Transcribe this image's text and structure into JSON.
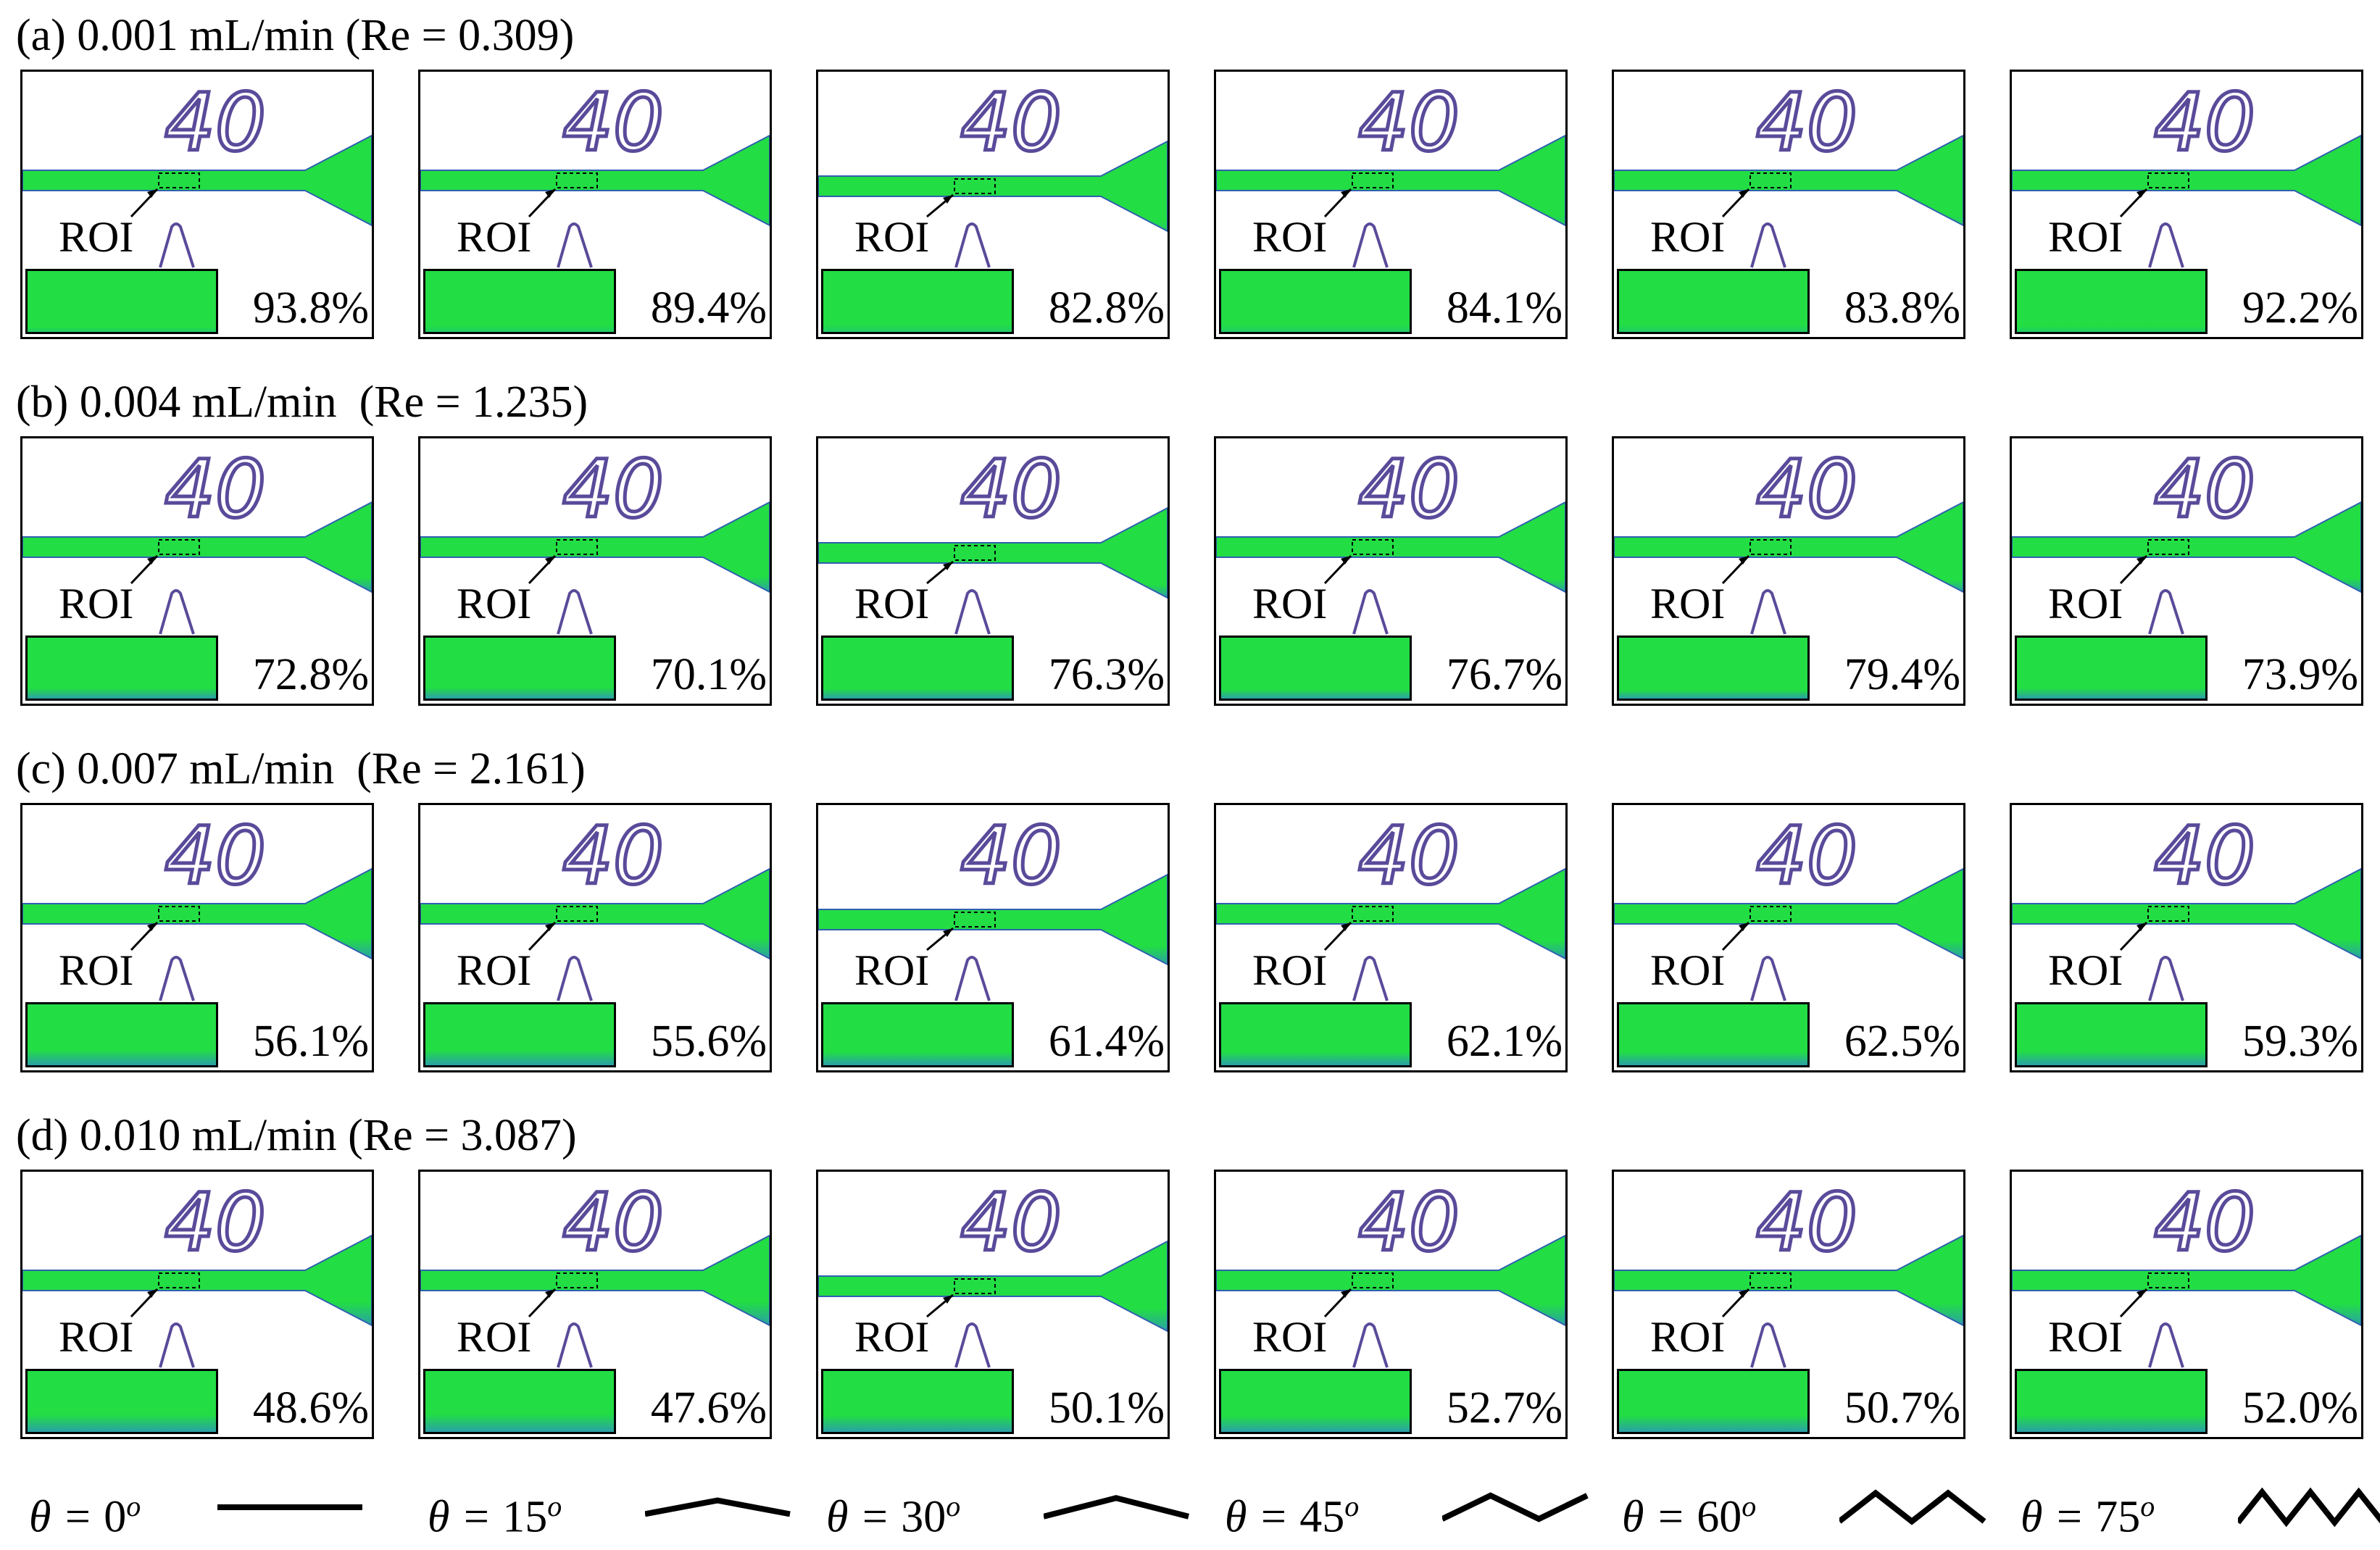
{
  "rows": [
    {
      "title": "(a) 0.001 mL/min (Re = 0.309)",
      "values": [
        "93.8%",
        "89.4%",
        "82.8%",
        "84.1%",
        "83.8%",
        "92.2%"
      ],
      "mixing": [
        93.8,
        89.4,
        82.8,
        84.1,
        83.8,
        92.2
      ]
    },
    {
      "title": "(b) 0.004 mL/min  (Re = 1.235)",
      "values": [
        "72.8%",
        "70.1%",
        "76.3%",
        "76.7%",
        "79.4%",
        "73.9%"
      ],
      "mixing": [
        72.8,
        70.1,
        76.3,
        76.7,
        79.4,
        73.9
      ]
    },
    {
      "title": "(c) 0.007 mL/min  (Re = 2.161)",
      "values": [
        "56.1%",
        "55.6%",
        "61.4%",
        "62.1%",
        "62.5%",
        "59.3%"
      ],
      "mixing": [
        56.1,
        55.6,
        61.4,
        62.1,
        62.5,
        59.3
      ]
    },
    {
      "title": "(d) 0.010 mL/min (Re = 3.087)",
      "values": [
        "48.6%",
        "47.6%",
        "50.1%",
        "52.7%",
        "50.7%",
        "52.0%"
      ],
      "mixing": [
        48.6,
        47.6,
        50.1,
        52.7,
        50.7,
        52.0
      ]
    }
  ],
  "panel_text": {
    "channel_number": "40",
    "roi_label": "ROI"
  },
  "legend": [
    {
      "symbol": "θ = ",
      "angle": "0",
      "degree": "o",
      "shape": "straight"
    },
    {
      "symbol": "θ = ",
      "angle": "15",
      "degree": "o",
      "shape": "zigzag"
    },
    {
      "symbol": "θ = ",
      "angle": "30",
      "degree": "o",
      "shape": "zigzag"
    },
    {
      "symbol": "θ = ",
      "angle": "45",
      "degree": "o",
      "shape": "zigzag"
    },
    {
      "symbol": "θ = ",
      "angle": "60",
      "degree": "o",
      "shape": "zigzag"
    },
    {
      "symbol": "θ = ",
      "angle": "75",
      "degree": "o",
      "shape": "zigzag"
    }
  ],
  "colors": {
    "fluid_green": "#22dd44",
    "fluid_blue": "#2aa0a8",
    "channel_edge": "#3060b0",
    "ink": "#5a4a9a"
  }
}
